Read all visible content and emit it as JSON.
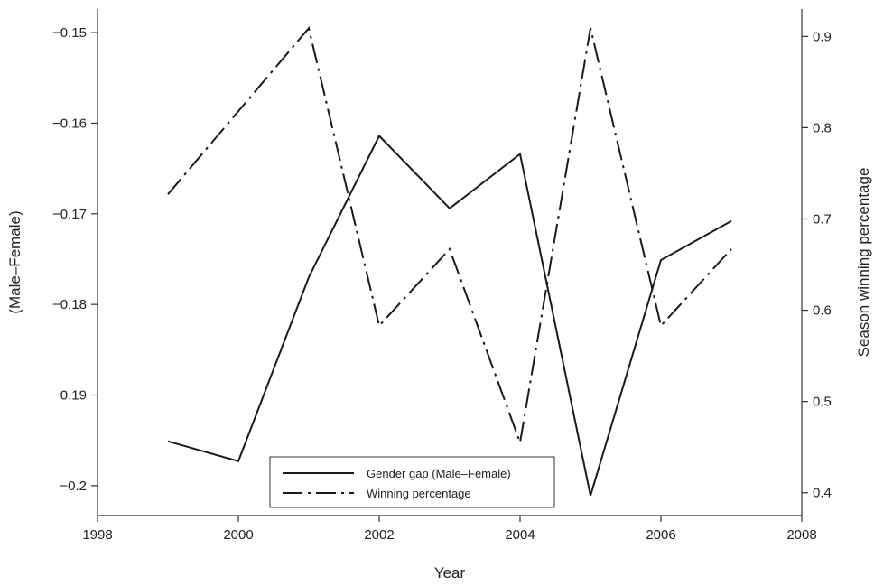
{
  "chart_data": {
    "type": "line",
    "title": "",
    "xlabel": "Year",
    "ylabel_left": "(Male–Female)",
    "ylabel_right": "Season winning percentage",
    "x": [
      1999,
      2000,
      2001,
      2002,
      2003,
      2004,
      2005,
      2006,
      2007
    ],
    "xlim": [
      1998,
      2008
    ],
    "x_ticks": [
      1998,
      2000,
      2002,
      2004,
      2006,
      2008
    ],
    "x_tick_labels": [
      "1998",
      "2000",
      "2002",
      "2004",
      "2006",
      "2008"
    ],
    "ylim_left": [
      -0.2033,
      -0.1474
    ],
    "y_ticks_left": [
      -0.2,
      -0.19,
      -0.18,
      -0.17,
      -0.16,
      -0.15
    ],
    "y_tick_labels_left": [
      "−0.2",
      "−0.19",
      "−0.18",
      "−0.17",
      "−0.16",
      "−0.15"
    ],
    "ylim_right": [
      0.375,
      0.93
    ],
    "y_ticks_right": [
      0.4,
      0.5,
      0.6,
      0.7,
      0.8,
      0.9
    ],
    "y_tick_labels_right": [
      "0.4",
      "0.5",
      "0.6",
      "0.7",
      "0.8",
      "0.9"
    ],
    "grid": false,
    "legend_position": "bottom-center",
    "series": [
      {
        "name": "Gender gap (Male–Female)",
        "axis": "left",
        "style": "solid",
        "values": [
          -0.1951,
          -0.1973,
          -0.177,
          -0.1614,
          -0.1694,
          -0.1634,
          -0.2011,
          -0.1751,
          -0.1708
        ]
      },
      {
        "name": "Winning percentage",
        "axis": "right",
        "style": "dash-dot",
        "values": [
          0.727,
          0.818,
          0.909,
          0.583,
          0.667,
          0.455,
          0.909,
          0.583,
          0.667
        ]
      }
    ],
    "colors": {
      "line": "#1a1a1a",
      "axis": "#333333",
      "background": "#ffffff"
    }
  }
}
